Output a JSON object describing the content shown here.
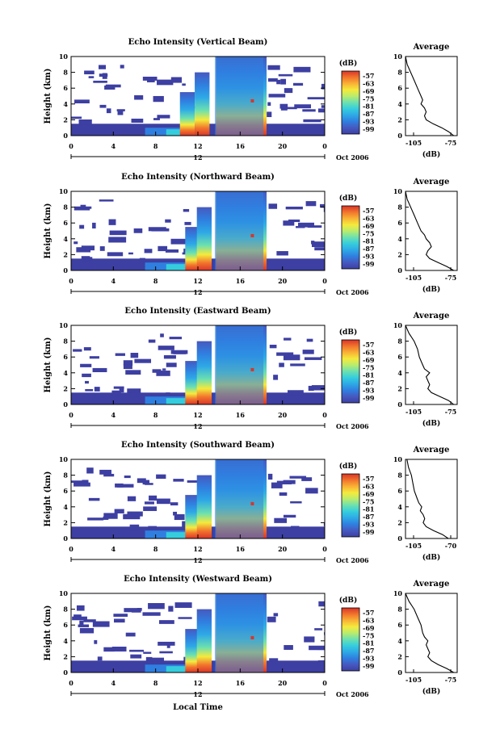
{
  "figure": {
    "x_axis_label": "Local Time",
    "x_ticks": [
      "0",
      "4",
      "8",
      "12",
      "16",
      "20",
      "0"
    ],
    "day_marker": "12",
    "month_year": "Oct 2006",
    "y_axis_label": "Height (km)",
    "y_ticks": [
      "0",
      "2",
      "4",
      "6",
      "8",
      "10"
    ],
    "colorbar_unit": "(dB)",
    "colorbar_ticks": [
      "-57",
      "-63",
      "-69",
      "-75",
      "-81",
      "-87",
      "-93",
      "-99"
    ],
    "colorbar_colors": [
      "#3d3fa2",
      "#4659c0",
      "#2f7fe0",
      "#2ea9e6",
      "#35cddd",
      "#6be0b0",
      "#b8ec6e",
      "#f5ea3c",
      "#f9b235",
      "#f2742c",
      "#d8352a"
    ],
    "profile_title": "Average",
    "profile_xlabel": "(dB)"
  },
  "chart_data": [
    {
      "type": "heatmap",
      "title": "Echo Intensity (Vertical Beam)",
      "ylabel": "Height (km)",
      "ylim": [
        0,
        10
      ],
      "xlim": [
        0,
        24
      ],
      "zlim": [
        -99,
        -57
      ],
      "z_unit": "(dB)",
      "columns": [
        {
          "t": 11.0,
          "top": 5.5
        },
        {
          "t": 12.4,
          "top": 8.0
        },
        {
          "t": 14.8,
          "top": 10.0
        },
        {
          "t": 16.2,
          "top": 10.0
        },
        {
          "t": 17.4,
          "top": 10.0
        }
      ]
    },
    {
      "type": "heatmap",
      "title": "Echo Intensity (Northward Beam)",
      "ylabel": "Height (km)",
      "ylim": [
        0,
        10
      ],
      "xlim": [
        0,
        24
      ],
      "zlim": [
        -99,
        -57
      ],
      "z_unit": "(dB)",
      "columns": [
        {
          "t": 11.5,
          "top": 5.5
        },
        {
          "t": 12.6,
          "top": 8.0
        },
        {
          "t": 14.8,
          "top": 10.0
        },
        {
          "t": 16.2,
          "top": 10.0
        },
        {
          "t": 17.4,
          "top": 10.0
        }
      ]
    },
    {
      "type": "heatmap",
      "title": "Echo Intensity (Eastward Beam)",
      "ylabel": "Height (km)",
      "ylim": [
        0,
        10
      ],
      "xlim": [
        0,
        24
      ],
      "zlim": [
        -99,
        -57
      ],
      "z_unit": "(dB)",
      "columns": [
        {
          "t": 11.5,
          "top": 5.5
        },
        {
          "t": 12.6,
          "top": 8.0
        },
        {
          "t": 14.8,
          "top": 10.0
        },
        {
          "t": 16.2,
          "top": 10.0
        },
        {
          "t": 17.4,
          "top": 10.0
        }
      ]
    },
    {
      "type": "heatmap",
      "title": "Echo Intensity (Southward Beam)",
      "ylabel": "Height (km)",
      "ylim": [
        0,
        10
      ],
      "xlim": [
        0,
        24
      ],
      "zlim": [
        -99,
        -57
      ],
      "z_unit": "(dB)",
      "columns": [
        {
          "t": 11.5,
          "top": 5.5
        },
        {
          "t": 12.6,
          "top": 8.0
        },
        {
          "t": 14.8,
          "top": 10.0
        },
        {
          "t": 16.2,
          "top": 10.0
        },
        {
          "t": 17.4,
          "top": 10.0
        }
      ]
    },
    {
      "type": "heatmap",
      "title": "Echo Intensity (Westward Beam)",
      "ylabel": "Height (km)",
      "ylim": [
        0,
        10
      ],
      "xlim": [
        0,
        24
      ],
      "zlim": [
        -99,
        -57
      ],
      "z_unit": "(dB)",
      "columns": [
        {
          "t": 11.5,
          "top": 5.5
        },
        {
          "t": 12.6,
          "top": 8.0
        },
        {
          "t": 14.8,
          "top": 10.0
        },
        {
          "t": 16.2,
          "top": 10.0
        },
        {
          "t": 17.4,
          "top": 10.0
        }
      ]
    },
    {
      "type": "line",
      "title": "Average",
      "xlabel": "(dB)",
      "ylabel": "",
      "xticks": [
        "-105",
        "-75"
      ],
      "xlim": [
        -105,
        -75
      ],
      "ylim": [
        0,
        10
      ],
      "x": [
        -77,
        -80,
        -84,
        -89,
        -93,
        -94,
        -93,
        -94,
        -96,
        -95,
        -96,
        -98,
        -100,
        -102,
        -104,
        -105
      ],
      "y": [
        0,
        0.5,
        1,
        1.5,
        2,
        2.5,
        3,
        3.5,
        4,
        4.5,
        5,
        6,
        7,
        8,
        9,
        10
      ]
    },
    {
      "type": "line",
      "title": "Average",
      "xlabel": "(dB)",
      "ylabel": "",
      "xticks": [
        "-105",
        "-75"
      ],
      "xlim": [
        -105,
        -75
      ],
      "ylim": [
        0,
        10
      ],
      "x": [
        -77,
        -81,
        -86,
        -91,
        -93,
        -92,
        -90,
        -91,
        -93,
        -94,
        -96,
        -98,
        -100,
        -102,
        -104,
        -105
      ],
      "y": [
        0,
        0.5,
        1,
        1.5,
        2,
        2.5,
        3,
        3.5,
        4,
        4.5,
        5,
        6,
        7,
        8,
        9,
        10
      ]
    },
    {
      "type": "line",
      "title": "Average",
      "xlabel": "(dB)",
      "ylabel": "",
      "xticks": [
        "-105",
        "-75"
      ],
      "xlim": [
        -105,
        -75
      ],
      "ylim": [
        0,
        10
      ],
      "x": [
        -77,
        -80,
        -85,
        -90,
        -92,
        -91,
        -92,
        -93,
        -91,
        -94,
        -95,
        -97,
        -98,
        -100,
        -103,
        -105
      ],
      "y": [
        0,
        0.5,
        1,
        1.5,
        2,
        2.5,
        3,
        3.5,
        4,
        4.5,
        5,
        6,
        7,
        8,
        9,
        10
      ]
    },
    {
      "type": "line",
      "title": "Average",
      "xlabel": "(dB)",
      "ylabel": "",
      "xticks": [
        "-105",
        "-70"
      ],
      "xlim": [
        -105,
        -70
      ],
      "ylim": [
        0,
        10
      ],
      "x": [
        -76,
        -80,
        -86,
        -91,
        -93,
        -92,
        -93,
        -95,
        -94,
        -96,
        -97,
        -99,
        -100,
        -101,
        -103,
        -104
      ],
      "y": [
        0,
        0.5,
        1,
        1.5,
        2,
        2.5,
        3,
        3.5,
        4,
        4.5,
        5,
        6,
        7,
        8,
        9,
        10
      ]
    },
    {
      "type": "line",
      "title": "Average",
      "xlabel": "(dB)",
      "ylabel": "",
      "xticks": [
        "-105",
        "-75"
      ],
      "xlim": [
        -105,
        -75
      ],
      "ylim": [
        0,
        10
      ],
      "x": [
        -77,
        -81,
        -86,
        -90,
        -92,
        -91,
        -92,
        -93,
        -92,
        -94,
        -95,
        -96,
        -98,
        -100,
        -103,
        -105
      ],
      "y": [
        0,
        0.5,
        1,
        1.5,
        2,
        2.5,
        3,
        3.5,
        4,
        4.5,
        5,
        6,
        7,
        8,
        9,
        10
      ]
    }
  ]
}
